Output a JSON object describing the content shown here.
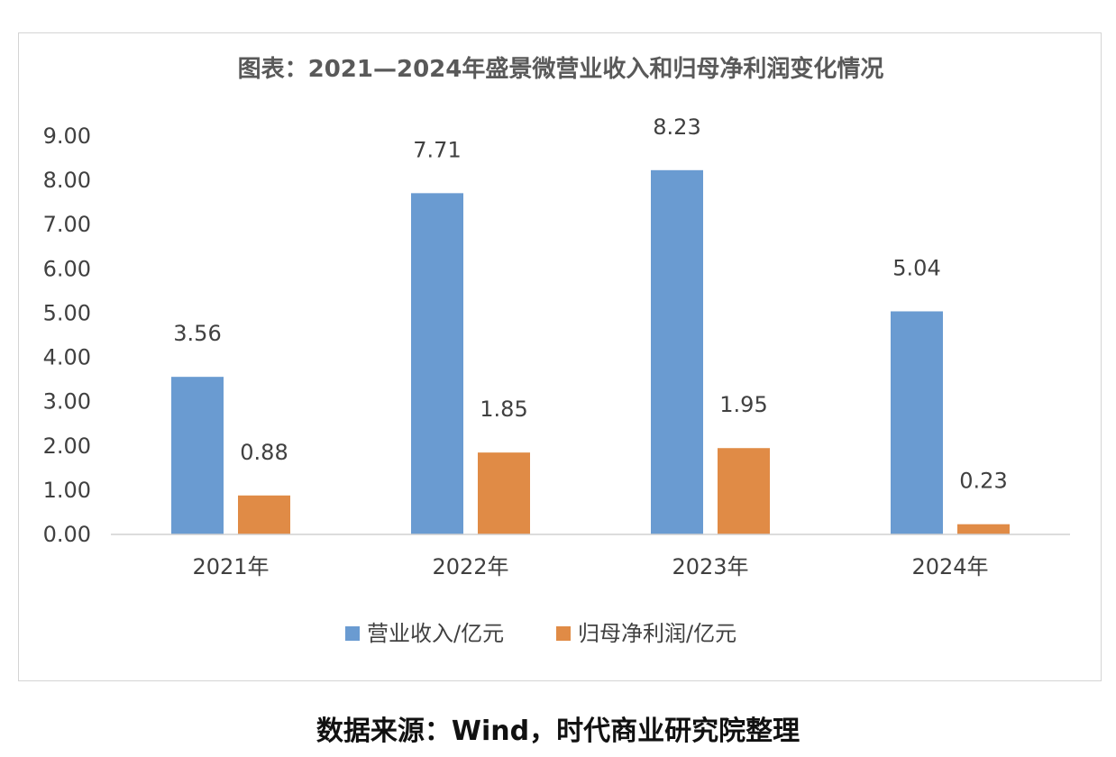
{
  "chart_data": {
    "type": "bar",
    "title": "图表：2021—2024年盛景微营业收入和归母净利润变化情况",
    "categories": [
      "2021年",
      "2022年",
      "2023年",
      "2024年"
    ],
    "series": [
      {
        "name": "营业收入/亿元",
        "values": [
          3.56,
          7.71,
          8.23,
          5.04
        ],
        "color": "#6a9bd1"
      },
      {
        "name": "归母净利润/亿元",
        "values": [
          0.88,
          1.85,
          1.95,
          0.23
        ],
        "color": "#e08b46"
      }
    ],
    "data_labels": [
      [
        "3.56",
        "7.71",
        "8.23",
        "5.04"
      ],
      [
        "0.88",
        "1.85",
        "1.95",
        "0.23"
      ]
    ],
    "y_ticks": [
      "0.00",
      "1.00",
      "2.00",
      "3.00",
      "4.00",
      "5.00",
      "6.00",
      "7.00",
      "8.00",
      "9.00"
    ],
    "ylim": [
      0,
      9
    ],
    "xlabel": "",
    "ylabel": "",
    "grid": false,
    "legend": "bottom-center"
  },
  "source": "数据来源：Wind，时代商业研究院整理"
}
